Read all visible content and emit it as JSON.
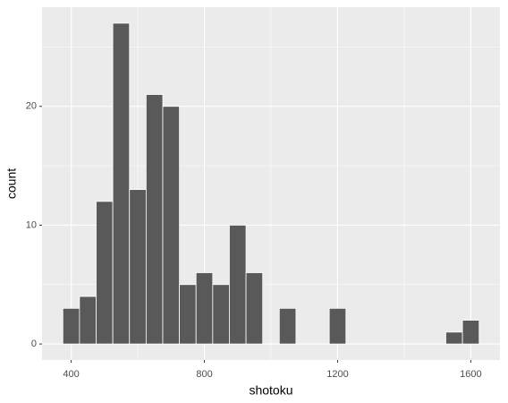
{
  "chart_data": {
    "type": "histogram",
    "x_label": "shotoku",
    "y_label": "count",
    "bins": [
      375,
      425,
      475,
      525,
      575,
      625,
      675,
      725,
      775,
      825,
      875,
      925,
      975,
      1025,
      1075,
      1125,
      1175,
      1225,
      1275,
      1325,
      1375,
      1425,
      1475,
      1525,
      1575,
      1625
    ],
    "counts": [
      3,
      4,
      12,
      27,
      13,
      21,
      20,
      5,
      6,
      5,
      10,
      6,
      0,
      3,
      0,
      0,
      3,
      0,
      0,
      0,
      0,
      0,
      0,
      1,
      2
    ],
    "color": "#595959",
    "xlim": [
      312.5,
      1687.5
    ],
    "xticks": [
      400,
      800,
      1200,
      1600
    ],
    "x_minor_ticks": [
      600,
      1000,
      1400
    ],
    "ylim": [
      -1.35,
      28.35
    ],
    "yticks": [
      0,
      10,
      20
    ],
    "y_minor_ticks": [
      5,
      15,
      25
    ],
    "grid": true
  }
}
